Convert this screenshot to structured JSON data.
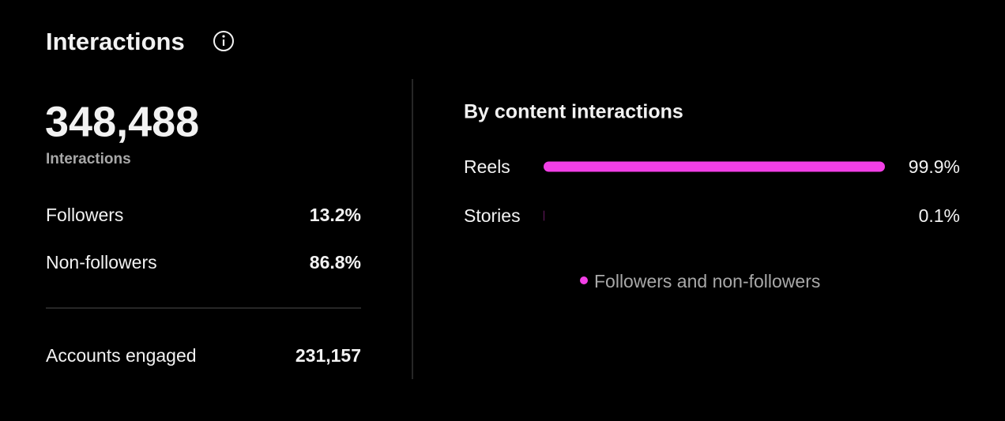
{
  "header": {
    "title": "Interactions"
  },
  "summary": {
    "total": "348,488",
    "total_label": "Interactions",
    "rows": [
      [
        "Followers",
        "13.2%"
      ],
      [
        "Non-followers",
        "86.8%"
      ]
    ],
    "footer_row": [
      "Accounts engaged",
      "231,157"
    ]
  },
  "chart_data": {
    "type": "bar",
    "orientation": "horizontal",
    "title": "By content interactions",
    "categories": [
      "Reels",
      "Stories"
    ],
    "series": [
      {
        "name": "Followers and non-followers",
        "color": "#f23fe6",
        "values": [
          99.9,
          0.1
        ],
        "value_labels": [
          "99.9%",
          "0.1%"
        ]
      }
    ]
  }
}
